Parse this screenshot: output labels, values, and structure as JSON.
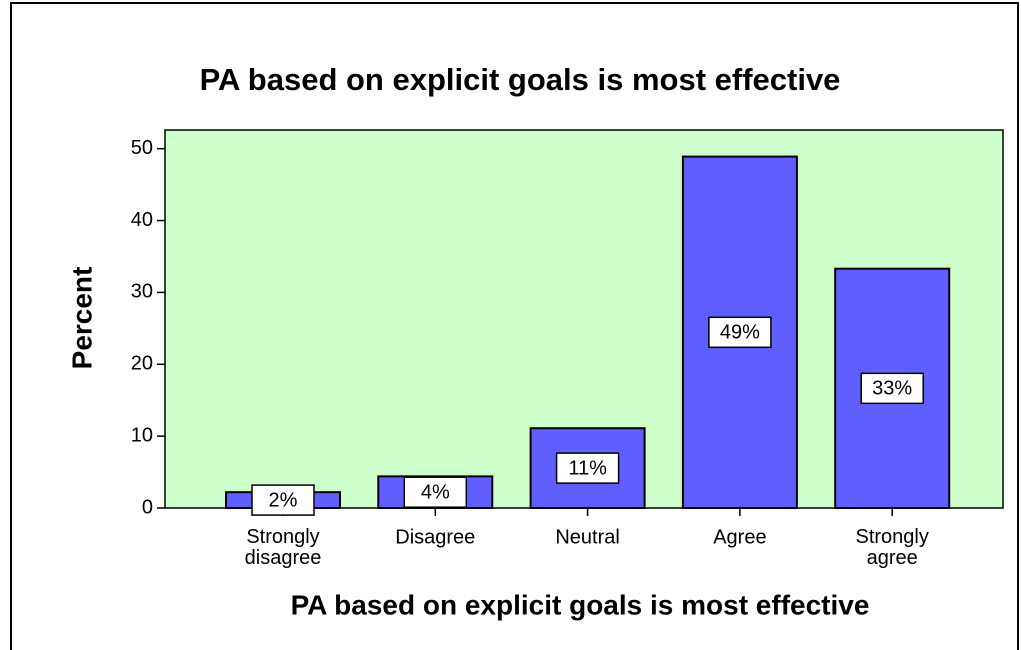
{
  "chart_data": {
    "type": "bar",
    "title": "PA based on explicit goals is most effective",
    "xlabel": "PA based on explicit goals is most effective",
    "ylabel": "Percent",
    "categories": [
      "Strongly disagree",
      "Disagree",
      "Neutral",
      "Agree",
      "Strongly agree"
    ],
    "values": [
      2.2,
      4.4,
      11.1,
      48.9,
      33.3
    ],
    "value_labels": [
      "2%",
      "4%",
      "11%",
      "49%",
      "33%"
    ],
    "color": "#5f5fff",
    "background": "#ccffcc",
    "ylim": [
      0,
      52.6
    ],
    "yticks": [
      0,
      10,
      20,
      30,
      40,
      50
    ]
  }
}
